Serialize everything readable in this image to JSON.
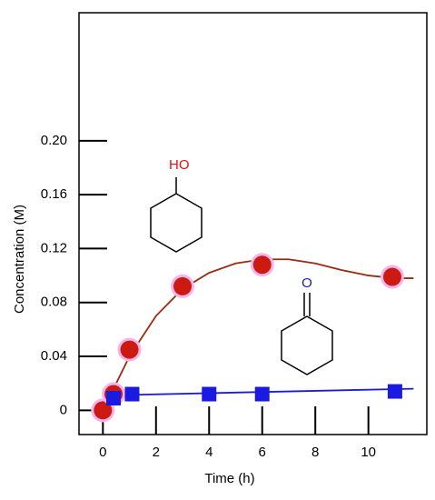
{
  "chart_data": {
    "type": "scatter",
    "x_label": "Time (h)",
    "y_label": "Concentration (M)",
    "xlim": [
      -0.9,
      12.2
    ],
    "ylim": [
      -0.018,
      0.295
    ],
    "xticks": [
      0,
      2,
      4,
      6,
      8,
      10
    ],
    "yticks": [
      0,
      0.04,
      0.08,
      0.12,
      0.16,
      {
        "value": 0.2,
        "label": "0.20"
      }
    ],
    "annotations": [
      "HO",
      "O"
    ],
    "series": [
      {
        "color": "#cc1a10",
        "marker": "circle",
        "x": [
          0,
          0.4,
          1,
          3,
          6,
          10.9
        ],
        "values": [
          0,
          0.012,
          0.045,
          0.092,
          0.108,
          0.099
        ]
      },
      {
        "color": "#1a1ae0",
        "marker": "square",
        "x": [
          0.4,
          1.1,
          4,
          6,
          11
        ],
        "values": [
          0.009,
          0.012,
          0.012,
          0.012,
          0.014
        ]
      }
    ],
    "fits": [
      {
        "color": "#9a2a10",
        "x": [
          0,
          0.5,
          1,
          2,
          3,
          4,
          5,
          6,
          7,
          8,
          9,
          10,
          11,
          11.7
        ],
        "values": [
          0,
          0.02,
          0.04,
          0.07,
          0.09,
          0.102,
          0.109,
          0.112,
          0.112,
          0.109,
          0.104,
          0.1,
          0.098,
          0.098
        ]
      },
      {
        "color": "#1a1ae0",
        "x": [
          0,
          11.7
        ],
        "values": [
          0.011,
          0.016
        ]
      }
    ]
  }
}
